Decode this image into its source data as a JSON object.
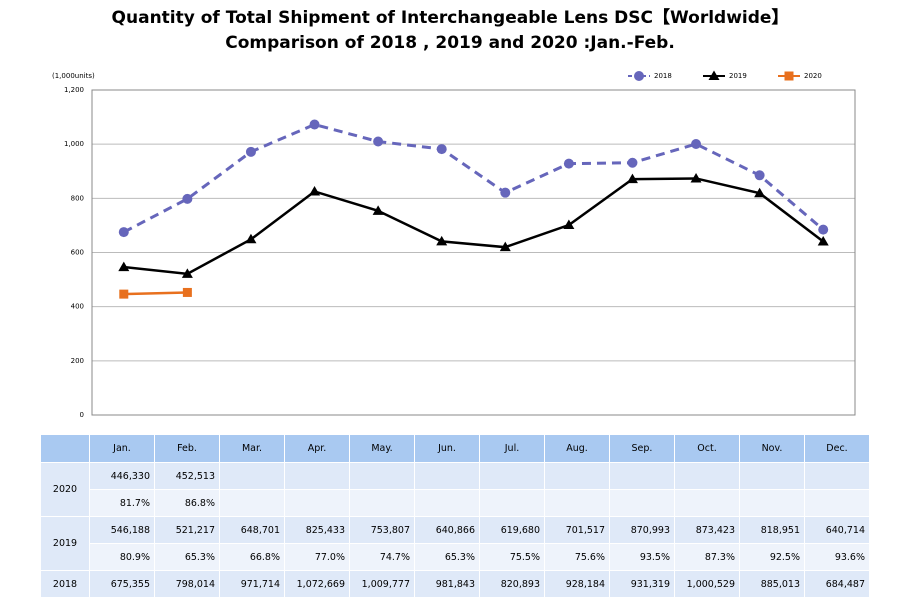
{
  "chart_data": {
    "type": "line",
    "title": "Quantity of Total Shipment of Interchangeable Lens DSC【Worldwide】",
    "subtitle": "Comparison of 2018 , 2019 and 2020 :Jan.-Feb.",
    "y_unit": "(1,000units)",
    "categories": [
      "Jan.",
      "Feb.",
      "Mar.",
      "Apr.",
      "May.",
      "Jun.",
      "Jul.",
      "Aug.",
      "Sep.",
      "Oct.",
      "Nov.",
      "Dec."
    ],
    "series": [
      {
        "name": "2018",
        "color": "#6666bb",
        "dash": true,
        "marker": "circle",
        "values": [
          675.355,
          798.014,
          971.714,
          1072.669,
          1009.777,
          981.843,
          820.893,
          928.184,
          931.319,
          1000.529,
          885.013,
          684.487
        ]
      },
      {
        "name": "2019",
        "color": "#000000",
        "dash": false,
        "marker": "triangle",
        "values": [
          546.188,
          521.217,
          648.701,
          825.433,
          753.807,
          640.866,
          619.68,
          701.517,
          870.993,
          873.423,
          818.951,
          640.714
        ]
      },
      {
        "name": "2020",
        "color": "#e8701e",
        "dash": false,
        "marker": "square",
        "values": [
          446.33,
          452.513,
          null,
          null,
          null,
          null,
          null,
          null,
          null,
          null,
          null,
          null
        ]
      }
    ],
    "ylim": [
      0,
      1200
    ],
    "yticks": [
      0,
      200,
      400,
      600,
      800,
      {
        "value": 1000,
        "label": "1,000"
      },
      {
        "value": 1200,
        "label": "1,200"
      }
    ],
    "grid": true,
    "legend": "top-right"
  },
  "table": {
    "rows": [
      {
        "year": "2020",
        "lines": [
          [
            "446,330",
            "452,513"
          ],
          [
            "81.7%",
            "86.8%"
          ]
        ]
      },
      {
        "year": "2019",
        "lines": [
          [
            "546,188",
            "521,217",
            "648,701",
            "825,433",
            "753,807",
            "640,866",
            "619,680",
            "701,517",
            "870,993",
            "873,423",
            "818,951",
            "640,714"
          ],
          [
            "80.9%",
            "65.3%",
            "66.8%",
            "77.0%",
            "74.7%",
            "65.3%",
            "75.5%",
            "75.6%",
            "93.5%",
            "87.3%",
            "92.5%",
            "93.6%"
          ]
        ]
      },
      {
        "year": "2018",
        "lines": [
          [
            "675,355",
            "798,014",
            "971,714",
            "1,072,669",
            "1,009,777",
            "981,843",
            "820,893",
            "928,184",
            "931,319",
            "1,000,529",
            "885,013",
            "684,487"
          ]
        ]
      }
    ]
  }
}
